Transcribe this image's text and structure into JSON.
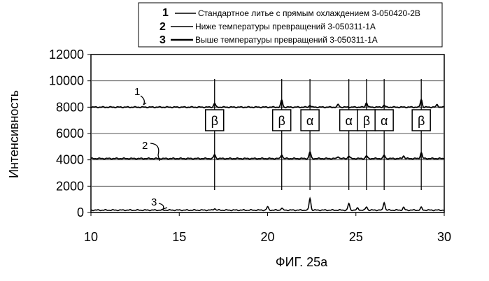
{
  "chart_data": {
    "type": "line",
    "title": "",
    "xlabel": "",
    "ylabel": "Интенсивность",
    "xlim": [
      10,
      30
    ],
    "ylim": [
      0,
      12000
    ],
    "x_ticks": [
      "10",
      "15",
      "20",
      "25",
      "30"
    ],
    "y_ticks": [
      "0",
      "2000",
      "4000",
      "6000",
      "8000",
      "10000",
      "12000"
    ],
    "grid": "horizontal",
    "legend_position": "top",
    "legend": [
      {
        "number": "1",
        "text": "Стандартное литье с прямым охлаждением 3-050420-2B"
      },
      {
        "number": "2",
        "text": "Ниже температуры превращений 3-050311-1A"
      },
      {
        "number": "3",
        "text": "Выше температуры превращений 3-050311-1A"
      }
    ],
    "series": [
      {
        "label": "1",
        "baseline": 8000,
        "peaks": [
          [
            17.0,
            300
          ],
          [
            20.8,
            550
          ],
          [
            22.4,
            150
          ],
          [
            24.0,
            200
          ],
          [
            25.6,
            350
          ],
          [
            26.6,
            150
          ],
          [
            28.7,
            600
          ],
          [
            29.6,
            200
          ]
        ]
      },
      {
        "label": "2",
        "baseline": 4100,
        "peaks": [
          [
            17.0,
            300
          ],
          [
            20.8,
            300
          ],
          [
            22.4,
            500
          ],
          [
            24.0,
            150
          ],
          [
            24.6,
            200
          ],
          [
            25.6,
            200
          ],
          [
            26.6,
            250
          ],
          [
            27.7,
            200
          ],
          [
            28.7,
            450
          ]
        ]
      },
      {
        "label": "3",
        "baseline": 180,
        "peaks": [
          [
            17.0,
            120
          ],
          [
            20.0,
            250
          ],
          [
            20.8,
            150
          ],
          [
            22.4,
            900
          ],
          [
            24.6,
            500
          ],
          [
            25.1,
            150
          ],
          [
            25.6,
            250
          ],
          [
            26.6,
            600
          ],
          [
            27.7,
            200
          ],
          [
            28.7,
            200
          ]
        ]
      }
    ],
    "phase_markers": [
      {
        "x": 17.0,
        "label": "β"
      },
      {
        "x": 20.8,
        "label": "β"
      },
      {
        "x": 22.4,
        "label": "α"
      },
      {
        "x": 24.6,
        "label": "α"
      },
      {
        "x": 25.6,
        "label": "β"
      },
      {
        "x": 26.6,
        "label": "α"
      },
      {
        "x": 28.7,
        "label": "β"
      }
    ]
  },
  "caption": "ФИГ. 25а"
}
